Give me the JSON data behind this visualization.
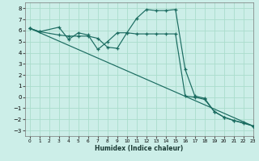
{
  "xlabel": "Humidex (Indice chaleur)",
  "bg_color": "#cceee8",
  "grid_color": "#aaddcc",
  "line_color": "#1a6b60",
  "xlim": [
    -0.5,
    23
  ],
  "ylim": [
    -3.5,
    8.5
  ],
  "xticks": [
    0,
    1,
    2,
    3,
    4,
    5,
    6,
    7,
    8,
    9,
    10,
    11,
    12,
    13,
    14,
    15,
    16,
    17,
    18,
    19,
    20,
    21,
    22,
    23
  ],
  "yticks": [
    -3,
    -2,
    -1,
    0,
    1,
    2,
    3,
    4,
    5,
    6,
    7,
    8
  ],
  "line1_x": [
    0,
    1,
    3,
    4,
    5,
    6,
    7,
    8,
    9,
    10,
    11,
    12,
    13,
    14,
    15,
    16,
    17,
    18,
    19,
    20,
    21,
    22,
    23
  ],
  "line1_y": [
    6.2,
    5.9,
    6.3,
    5.2,
    5.8,
    5.6,
    4.3,
    5.0,
    5.8,
    5.8,
    7.1,
    7.9,
    7.8,
    7.8,
    7.9,
    2.5,
    0.1,
    -0.1,
    -1.3,
    -1.8,
    -2.1,
    -2.3,
    -2.6
  ],
  "line2_x": [
    0,
    1,
    3,
    4,
    5,
    6,
    7,
    8,
    9,
    10,
    11,
    12,
    13,
    14,
    15,
    16,
    17,
    18,
    19,
    20,
    21,
    22,
    23
  ],
  "line2_y": [
    6.2,
    5.9,
    5.6,
    5.5,
    5.5,
    5.5,
    5.3,
    4.5,
    4.4,
    5.8,
    5.7,
    5.7,
    5.7,
    5.7,
    5.7,
    0.1,
    0.0,
    -0.2,
    -1.3,
    -1.8,
    -2.1,
    -2.35,
    -2.6
  ],
  "line3_x": [
    0,
    23
  ],
  "line3_y": [
    6.2,
    -2.6
  ]
}
